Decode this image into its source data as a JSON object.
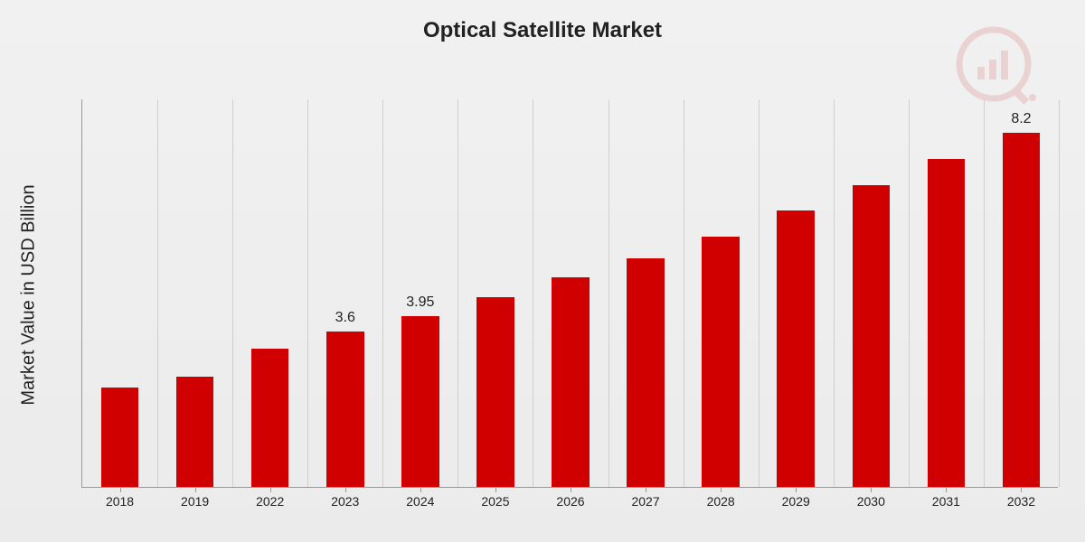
{
  "chart": {
    "type": "bar",
    "title": "Optical Satellite Market",
    "title_fontsize": 24,
    "ylabel": "Market Value in USD Billion",
    "ylabel_fontsize": 20,
    "background_gradient": [
      "#f1f1f1",
      "#ebebeb"
    ],
    "axis_color": "#999999",
    "grid_color": "#cfcfcf",
    "bar_color": "#d10000",
    "label_color": "#222222",
    "xlabel_fontsize": 14,
    "value_label_fontsize": 16,
    "ylim": [
      0,
      9
    ],
    "categories": [
      "2018",
      "2019",
      "2022",
      "2023",
      "2024",
      "2025",
      "2026",
      "2027",
      "2028",
      "2029",
      "2030",
      "2031",
      "2032"
    ],
    "values": [
      2.3,
      2.55,
      3.2,
      3.6,
      3.95,
      4.4,
      4.85,
      5.3,
      5.8,
      6.4,
      7.0,
      7.6,
      8.2
    ],
    "shown_value_labels": {
      "3": "3.6",
      "4": "3.95",
      "12": "8.2"
    },
    "bar_width_ratio": 0.5,
    "logo_color": "#c40000",
    "logo_opacity": 0.12
  }
}
